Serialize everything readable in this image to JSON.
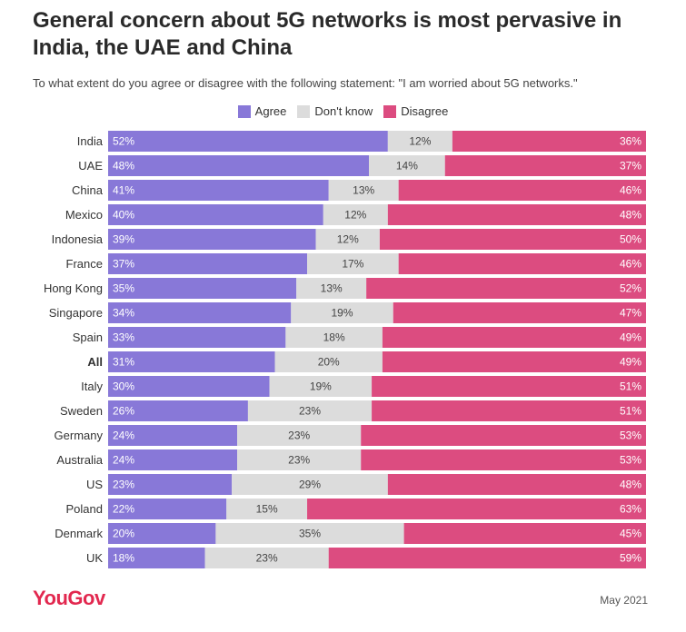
{
  "title": "General concern about 5G networks is most pervasive in India, the UAE and China",
  "subtitle": "To what extent do you agree or disagree with the following statement: \"I am worried about 5G networks.\"",
  "colors": {
    "agree": "#8878d8",
    "dont_know": "#dcdcdc",
    "disagree": "#dc4c80"
  },
  "footer": {
    "logo": "YouGov",
    "date": "May 2021"
  },
  "chart_data": {
    "type": "bar",
    "orientation": "horizontal",
    "stacked": true,
    "legend_position": "top-center",
    "categories": [
      "India",
      "UAE",
      "China",
      "Mexico",
      "Indonesia",
      "France",
      "Hong Kong",
      "Singapore",
      "Spain",
      "All",
      "Italy",
      "Sweden",
      "Germany",
      "Australia",
      "US",
      "Poland",
      "Denmark",
      "UK"
    ],
    "highlight": "All",
    "series": [
      {
        "name": "Agree",
        "values": [
          52,
          48,
          41,
          40,
          39,
          37,
          35,
          34,
          33,
          31,
          30,
          26,
          24,
          24,
          23,
          22,
          20,
          18
        ]
      },
      {
        "name": "Don't know",
        "values": [
          12,
          14,
          13,
          12,
          12,
          17,
          13,
          19,
          18,
          20,
          19,
          23,
          23,
          23,
          29,
          15,
          35,
          23
        ]
      },
      {
        "name": "Disagree",
        "values": [
          36,
          37,
          46,
          48,
          50,
          46,
          52,
          47,
          49,
          49,
          51,
          51,
          53,
          53,
          48,
          63,
          45,
          59
        ]
      }
    ],
    "value_suffix": "%"
  }
}
